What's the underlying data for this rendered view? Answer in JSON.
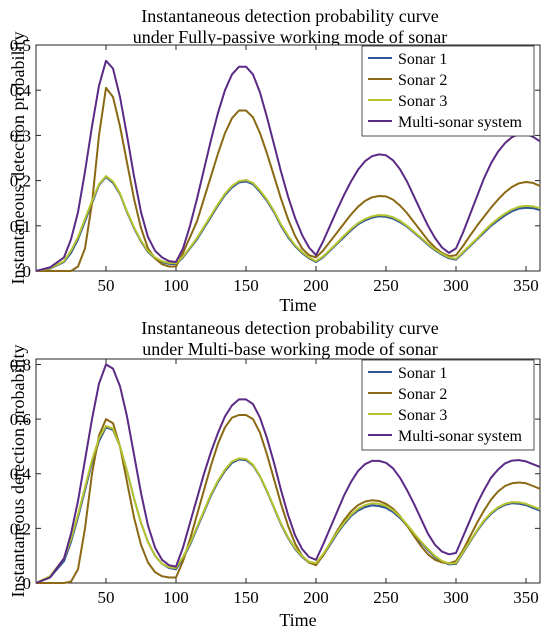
{
  "chart_data": [
    {
      "type": "line",
      "title": [
        "Instantaneous detection probability curve",
        "under Fully-passive working mode of sonar"
      ],
      "xlabel": "Time",
      "ylabel": "Instantaneous detection probability",
      "xlim": [
        0,
        360
      ],
      "ylim": [
        0,
        0.5
      ],
      "xticks": [
        50,
        100,
        150,
        200,
        250,
        300,
        350
      ],
      "yticks": [
        0,
        0.1,
        0.2,
        0.3,
        0.4,
        0.5
      ],
      "ytick_labels": [
        "0",
        "0.1",
        "0.2",
        "0.3",
        "0.4",
        "0.5"
      ],
      "grid": false,
      "legend_position": "top-right",
      "x": [
        0,
        10,
        20,
        25,
        30,
        35,
        40,
        45,
        50,
        55,
        60,
        65,
        70,
        75,
        80,
        85,
        90,
        95,
        100,
        105,
        110,
        115,
        120,
        125,
        130,
        135,
        140,
        145,
        150,
        155,
        160,
        165,
        170,
        175,
        180,
        185,
        190,
        195,
        200,
        205,
        210,
        215,
        220,
        225,
        230,
        235,
        240,
        245,
        250,
        255,
        260,
        265,
        270,
        275,
        280,
        285,
        290,
        295,
        300,
        305,
        310,
        315,
        320,
        325,
        330,
        335,
        340,
        345,
        350,
        355,
        360
      ],
      "series": [
        {
          "name": "Sonar 1",
          "color": "#2f5597",
          "values": [
            0,
            0.005,
            0.02,
            0.04,
            0.07,
            0.11,
            0.15,
            0.19,
            0.208,
            0.195,
            0.17,
            0.13,
            0.095,
            0.065,
            0.042,
            0.028,
            0.02,
            0.016,
            0.015,
            0.03,
            0.05,
            0.07,
            0.095,
            0.12,
            0.145,
            0.168,
            0.185,
            0.196,
            0.198,
            0.192,
            0.175,
            0.155,
            0.13,
            0.1,
            0.075,
            0.055,
            0.04,
            0.028,
            0.02,
            0.03,
            0.045,
            0.06,
            0.075,
            0.09,
            0.103,
            0.112,
            0.118,
            0.121,
            0.12,
            0.116,
            0.108,
            0.098,
            0.085,
            0.072,
            0.058,
            0.046,
            0.036,
            0.028,
            0.025,
            0.04,
            0.055,
            0.07,
            0.085,
            0.1,
            0.112,
            0.123,
            0.132,
            0.138,
            0.14,
            0.139,
            0.135
          ]
        },
        {
          "name": "Sonar 2",
          "color": "#8b6914",
          "values": [
            0,
            0,
            0,
            0,
            0.01,
            0.05,
            0.15,
            0.3,
            0.405,
            0.385,
            0.32,
            0.24,
            0.16,
            0.095,
            0.05,
            0.028,
            0.015,
            0.01,
            0.01,
            0.04,
            0.075,
            0.11,
            0.16,
            0.21,
            0.26,
            0.305,
            0.338,
            0.355,
            0.355,
            0.34,
            0.305,
            0.26,
            0.21,
            0.16,
            0.115,
            0.078,
            0.05,
            0.035,
            0.03,
            0.045,
            0.065,
            0.085,
            0.105,
            0.125,
            0.142,
            0.155,
            0.163,
            0.166,
            0.165,
            0.158,
            0.145,
            0.128,
            0.108,
            0.088,
            0.068,
            0.052,
            0.04,
            0.033,
            0.035,
            0.055,
            0.078,
            0.1,
            0.12,
            0.14,
            0.158,
            0.174,
            0.186,
            0.194,
            0.197,
            0.195,
            0.188
          ]
        },
        {
          "name": "Sonar 3",
          "color": "#b5c42f",
          "values": [
            0,
            0.006,
            0.022,
            0.045,
            0.075,
            0.115,
            0.155,
            0.192,
            0.21,
            0.198,
            0.172,
            0.132,
            0.097,
            0.067,
            0.044,
            0.03,
            0.022,
            0.018,
            0.017,
            0.032,
            0.052,
            0.073,
            0.098,
            0.123,
            0.148,
            0.171,
            0.188,
            0.199,
            0.201,
            0.195,
            0.178,
            0.158,
            0.133,
            0.103,
            0.078,
            0.057,
            0.042,
            0.03,
            0.022,
            0.032,
            0.047,
            0.062,
            0.078,
            0.093,
            0.106,
            0.115,
            0.121,
            0.124,
            0.123,
            0.119,
            0.111,
            0.1,
            0.087,
            0.074,
            0.06,
            0.048,
            0.038,
            0.03,
            0.027,
            0.042,
            0.057,
            0.072,
            0.088,
            0.103,
            0.116,
            0.127,
            0.136,
            0.142,
            0.144,
            0.143,
            0.139
          ]
        },
        {
          "name": "Multi-sonar system",
          "color": "#5b2a86",
          "values": [
            0,
            0.008,
            0.03,
            0.07,
            0.13,
            0.22,
            0.32,
            0.41,
            0.465,
            0.448,
            0.385,
            0.3,
            0.21,
            0.13,
            0.075,
            0.045,
            0.03,
            0.022,
            0.02,
            0.05,
            0.1,
            0.16,
            0.225,
            0.29,
            0.35,
            0.4,
            0.435,
            0.452,
            0.452,
            0.435,
            0.395,
            0.34,
            0.28,
            0.22,
            0.165,
            0.118,
            0.08,
            0.052,
            0.035,
            0.065,
            0.1,
            0.135,
            0.168,
            0.198,
            0.224,
            0.243,
            0.254,
            0.258,
            0.256,
            0.245,
            0.225,
            0.198,
            0.165,
            0.132,
            0.1,
            0.073,
            0.052,
            0.04,
            0.05,
            0.085,
            0.125,
            0.165,
            0.205,
            0.238,
            0.264,
            0.283,
            0.296,
            0.303,
            0.303,
            0.297,
            0.287
          ]
        }
      ]
    },
    {
      "type": "line",
      "title": [
        "Instantaneous detection probability curve",
        "under Multi-base working mode of sonar"
      ],
      "xlabel": "Time",
      "ylabel": "Instantaneous detection probability",
      "xlim": [
        0,
        360
      ],
      "ylim": [
        0,
        0.82
      ],
      "xticks": [
        50,
        100,
        150,
        200,
        250,
        300,
        350
      ],
      "yticks": [
        0,
        0.2,
        0.4,
        0.6,
        0.8
      ],
      "ytick_labels": [
        "0",
        "0.2",
        "0.4",
        "0.6",
        "0.8"
      ],
      "grid": false,
      "legend_position": "top-right",
      "x": [
        0,
        10,
        20,
        25,
        30,
        35,
        40,
        45,
        50,
        55,
        60,
        65,
        70,
        75,
        80,
        85,
        90,
        95,
        100,
        105,
        110,
        115,
        120,
        125,
        130,
        135,
        140,
        145,
        150,
        155,
        160,
        165,
        170,
        175,
        180,
        185,
        190,
        195,
        200,
        205,
        210,
        215,
        220,
        225,
        230,
        235,
        240,
        245,
        250,
        255,
        260,
        265,
        270,
        275,
        280,
        285,
        290,
        295,
        300,
        305,
        310,
        315,
        320,
        325,
        330,
        335,
        340,
        345,
        350,
        355,
        360
      ],
      "series": [
        {
          "name": "Sonar 1",
          "color": "#2f5597",
          "values": [
            0,
            0.02,
            0.08,
            0.15,
            0.24,
            0.34,
            0.44,
            0.52,
            0.57,
            0.56,
            0.5,
            0.41,
            0.31,
            0.22,
            0.15,
            0.1,
            0.07,
            0.055,
            0.05,
            0.09,
            0.14,
            0.2,
            0.26,
            0.32,
            0.37,
            0.41,
            0.44,
            0.452,
            0.45,
            0.43,
            0.39,
            0.335,
            0.275,
            0.215,
            0.165,
            0.125,
            0.095,
            0.075,
            0.07,
            0.1,
            0.14,
            0.18,
            0.215,
            0.245,
            0.265,
            0.278,
            0.284,
            0.282,
            0.275,
            0.26,
            0.238,
            0.21,
            0.178,
            0.148,
            0.12,
            0.095,
            0.078,
            0.068,
            0.07,
            0.11,
            0.15,
            0.19,
            0.225,
            0.253,
            0.273,
            0.286,
            0.292,
            0.29,
            0.285,
            0.275,
            0.265
          ]
        },
        {
          "name": "Sonar 2",
          "color": "#8b6914",
          "values": [
            0,
            0,
            0,
            0.005,
            0.05,
            0.2,
            0.4,
            0.54,
            0.6,
            0.585,
            0.5,
            0.37,
            0.24,
            0.14,
            0.075,
            0.04,
            0.025,
            0.02,
            0.02,
            0.08,
            0.16,
            0.25,
            0.34,
            0.43,
            0.51,
            0.57,
            0.605,
            0.615,
            0.615,
            0.6,
            0.55,
            0.47,
            0.38,
            0.29,
            0.21,
            0.145,
            0.1,
            0.075,
            0.065,
            0.1,
            0.145,
            0.19,
            0.23,
            0.262,
            0.285,
            0.298,
            0.303,
            0.3,
            0.29,
            0.272,
            0.245,
            0.21,
            0.172,
            0.135,
            0.105,
            0.085,
            0.075,
            0.072,
            0.08,
            0.12,
            0.17,
            0.22,
            0.265,
            0.305,
            0.335,
            0.355,
            0.365,
            0.368,
            0.365,
            0.355,
            0.345
          ]
        },
        {
          "name": "Sonar 3",
          "color": "#b5c42f",
          "values": [
            0,
            0.025,
            0.09,
            0.16,
            0.25,
            0.35,
            0.45,
            0.53,
            0.575,
            0.565,
            0.5,
            0.41,
            0.31,
            0.22,
            0.15,
            0.1,
            0.07,
            0.058,
            0.055,
            0.095,
            0.145,
            0.205,
            0.265,
            0.325,
            0.375,
            0.415,
            0.445,
            0.456,
            0.454,
            0.433,
            0.392,
            0.338,
            0.278,
            0.218,
            0.168,
            0.128,
            0.098,
            0.078,
            0.073,
            0.105,
            0.145,
            0.185,
            0.22,
            0.25,
            0.272,
            0.285,
            0.292,
            0.29,
            0.282,
            0.266,
            0.243,
            0.214,
            0.182,
            0.152,
            0.124,
            0.099,
            0.081,
            0.071,
            0.073,
            0.113,
            0.153,
            0.193,
            0.229,
            0.257,
            0.277,
            0.29,
            0.296,
            0.295,
            0.29,
            0.28,
            0.27
          ]
        },
        {
          "name": "Multi-sonar system",
          "color": "#5b2a86",
          "values": [
            0,
            0.02,
            0.09,
            0.18,
            0.3,
            0.45,
            0.6,
            0.73,
            0.8,
            0.785,
            0.72,
            0.61,
            0.47,
            0.33,
            0.21,
            0.13,
            0.085,
            0.065,
            0.06,
            0.13,
            0.22,
            0.31,
            0.4,
            0.48,
            0.55,
            0.61,
            0.65,
            0.672,
            0.672,
            0.655,
            0.605,
            0.53,
            0.44,
            0.34,
            0.25,
            0.175,
            0.125,
            0.095,
            0.085,
            0.14,
            0.2,
            0.26,
            0.32,
            0.37,
            0.41,
            0.435,
            0.447,
            0.447,
            0.44,
            0.42,
            0.385,
            0.34,
            0.29,
            0.235,
            0.18,
            0.14,
            0.115,
            0.105,
            0.11,
            0.17,
            0.23,
            0.29,
            0.34,
            0.385,
            0.415,
            0.438,
            0.448,
            0.45,
            0.445,
            0.435,
            0.425
          ]
        }
      ]
    }
  ]
}
